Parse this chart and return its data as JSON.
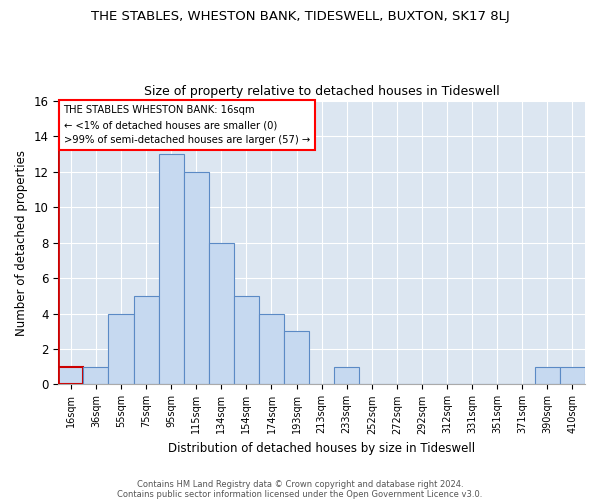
{
  "title": "THE STABLES, WHESTON BANK, TIDESWELL, BUXTON, SK17 8LJ",
  "subtitle": "Size of property relative to detached houses in Tideswell",
  "xlabel": "Distribution of detached houses by size in Tideswell",
  "ylabel": "Number of detached properties",
  "bin_labels": [
    "16sqm",
    "36sqm",
    "55sqm",
    "75sqm",
    "95sqm",
    "115sqm",
    "134sqm",
    "154sqm",
    "174sqm",
    "193sqm",
    "213sqm",
    "233sqm",
    "252sqm",
    "272sqm",
    "292sqm",
    "312sqm",
    "331sqm",
    "351sqm",
    "371sqm",
    "390sqm",
    "410sqm"
  ],
  "bin_counts": [
    1,
    1,
    4,
    5,
    13,
    12,
    8,
    5,
    4,
    3,
    0,
    1,
    0,
    0,
    0,
    0,
    0,
    0,
    0,
    1,
    1
  ],
  "bar_color": "#c6d9f0",
  "bar_edge_color": "#5b8ac5",
  "highlight_bar_edge_color": "#cc0000",
  "background_color": "#dce6f1",
  "ylim": [
    0,
    16
  ],
  "yticks": [
    0,
    2,
    4,
    6,
    8,
    10,
    12,
    14,
    16
  ],
  "annotation_text": "THE STABLES WHESTON BANK: 16sqm\n← <1% of detached houses are smaller (0)\n>99% of semi-detached houses are larger (57) →",
  "footnote1": "Contains HM Land Registry data © Crown copyright and database right 2024.",
  "footnote2": "Contains public sector information licensed under the Open Government Licence v3.0."
}
